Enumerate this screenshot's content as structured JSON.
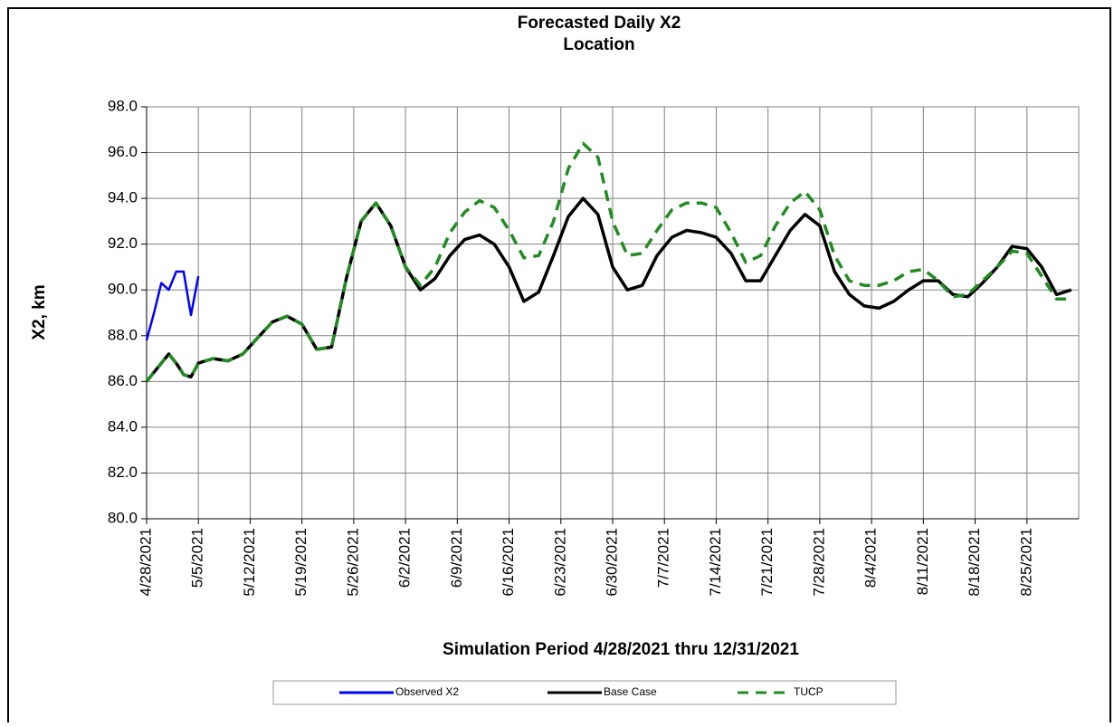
{
  "chart_data": {
    "type": "line",
    "title": [
      "Forecasted Daily X2",
      "Location"
    ],
    "xlabel": "Simulation Period 4/28/2021 thru 12/31/2021",
    "ylabel": "X2, km",
    "x": [
      "4/28/2021",
      "4/29/2021",
      "4/30/2021",
      "5/1/2021",
      "5/2/2021",
      "5/3/2021",
      "5/4/2021",
      "5/5/2021",
      "5/7/2021",
      "5/9/2021",
      "5/11/2021",
      "5/13/2021",
      "5/15/2021",
      "5/17/2021",
      "5/19/2021",
      "5/21/2021",
      "5/23/2021",
      "5/25/2021",
      "5/27/2021",
      "5/29/2021",
      "5/31/2021",
      "6/2/2021",
      "6/4/2021",
      "6/6/2021",
      "6/8/2021",
      "6/10/2021",
      "6/12/2021",
      "6/14/2021",
      "6/16/2021",
      "6/18/2021",
      "6/20/2021",
      "6/22/2021",
      "6/24/2021",
      "6/26/2021",
      "6/28/2021",
      "6/30/2021",
      "7/2/2021",
      "7/4/2021",
      "7/6/2021",
      "7/8/2021",
      "7/10/2021",
      "7/12/2021",
      "7/14/2021",
      "7/16/2021",
      "7/18/2021",
      "7/20/2021",
      "7/22/2021",
      "7/24/2021",
      "7/26/2021",
      "7/28/2021",
      "7/30/2021",
      "8/1/2021",
      "8/3/2021",
      "8/5/2021",
      "8/7/2021",
      "8/9/2021",
      "8/11/2021",
      "8/13/2021",
      "8/15/2021",
      "8/17/2021",
      "8/19/2021",
      "8/21/2021",
      "8/23/2021",
      "8/25/2021",
      "8/27/2021",
      "8/29/2021",
      "8/31/2021"
    ],
    "series": [
      {
        "name": "Observed X2",
        "color": "#0000ff",
        "dashed": false,
        "values": [
          87.8,
          89.0,
          90.3,
          90.0,
          90.8,
          90.8,
          88.9,
          90.6,
          null,
          null,
          null,
          null,
          null,
          null,
          null,
          null,
          null,
          null,
          null,
          null,
          null,
          null,
          null,
          null,
          null,
          null,
          null,
          null,
          null,
          null,
          null,
          null,
          null,
          null,
          null,
          null,
          null,
          null,
          null,
          null,
          null,
          null,
          null,
          null,
          null,
          null,
          null,
          null,
          null,
          null,
          null,
          null,
          null,
          null,
          null,
          null,
          null,
          null,
          null,
          null,
          null,
          null,
          null,
          null,
          null,
          null,
          null
        ]
      },
      {
        "name": "Base Case",
        "color": "#000000",
        "dashed": false,
        "values": [
          86.0,
          86.4,
          86.8,
          87.2,
          86.8,
          86.3,
          86.2,
          86.8,
          87.0,
          86.9,
          87.2,
          87.9,
          88.6,
          88.85,
          88.5,
          87.4,
          87.5,
          90.5,
          93.0,
          93.8,
          92.8,
          91.0,
          90.0,
          90.5,
          91.5,
          92.2,
          92.4,
          92.0,
          91.0,
          89.5,
          89.9,
          91.5,
          93.2,
          94.0,
          93.3,
          91.0,
          90.0,
          90.2,
          91.5,
          92.3,
          92.6,
          92.5,
          92.3,
          91.6,
          90.4,
          90.4,
          91.5,
          92.6,
          93.3,
          92.8,
          90.8,
          89.8,
          89.3,
          89.2,
          89.5,
          90.0,
          90.4,
          90.4,
          89.8,
          89.7,
          90.3,
          91.0,
          91.9,
          91.8,
          91.0,
          89.8,
          90.0
        ]
      },
      {
        "name": "TUCP",
        "color": "#228b22",
        "dashed": true,
        "values": [
          86.0,
          86.4,
          86.8,
          87.2,
          86.8,
          86.3,
          86.2,
          86.8,
          87.0,
          86.9,
          87.2,
          87.9,
          88.6,
          88.85,
          88.5,
          87.4,
          87.5,
          90.5,
          93.0,
          93.8,
          92.8,
          91.0,
          90.2,
          91.0,
          92.5,
          93.4,
          93.9,
          93.6,
          92.6,
          91.4,
          91.5,
          93.0,
          95.3,
          96.4,
          95.8,
          93.0,
          91.5,
          91.6,
          92.6,
          93.5,
          93.8,
          93.8,
          93.6,
          92.5,
          91.2,
          91.5,
          92.8,
          93.8,
          94.3,
          93.5,
          91.5,
          90.4,
          90.2,
          90.2,
          90.4,
          90.8,
          90.9,
          90.4,
          89.7,
          89.8,
          90.4,
          91.0,
          91.7,
          91.6,
          90.6,
          89.6,
          89.6
        ]
      }
    ],
    "xlim": [
      "4/28/2021",
      "9/1/2021"
    ],
    "xticks": [
      "4/28/2021",
      "5/5/2021",
      "5/12/2021",
      "5/19/2021",
      "5/26/2021",
      "6/2/2021",
      "6/9/2021",
      "6/16/2021",
      "6/23/2021",
      "6/30/2021",
      "7/7/2021",
      "7/14/2021",
      "7/21/2021",
      "7/28/2021",
      "8/4/2021",
      "8/11/2021",
      "8/18/2021",
      "8/25/2021"
    ],
    "ylim": [
      80,
      98
    ],
    "yticks": [
      {
        "value": 80,
        "label": "80.0"
      },
      {
        "value": 82,
        "label": "82.0"
      },
      {
        "value": 84,
        "label": "84.0"
      },
      {
        "value": 86,
        "label": "86.0"
      },
      {
        "value": 88,
        "label": "88.0"
      },
      {
        "value": 90,
        "label": "90.0"
      },
      {
        "value": 92,
        "label": "92.0"
      },
      {
        "value": 94,
        "label": "94.0"
      },
      {
        "value": 96,
        "label": "96.0"
      },
      {
        "value": 98,
        "label": "98.0"
      }
    ],
    "grid": true,
    "legend": "bottom"
  }
}
